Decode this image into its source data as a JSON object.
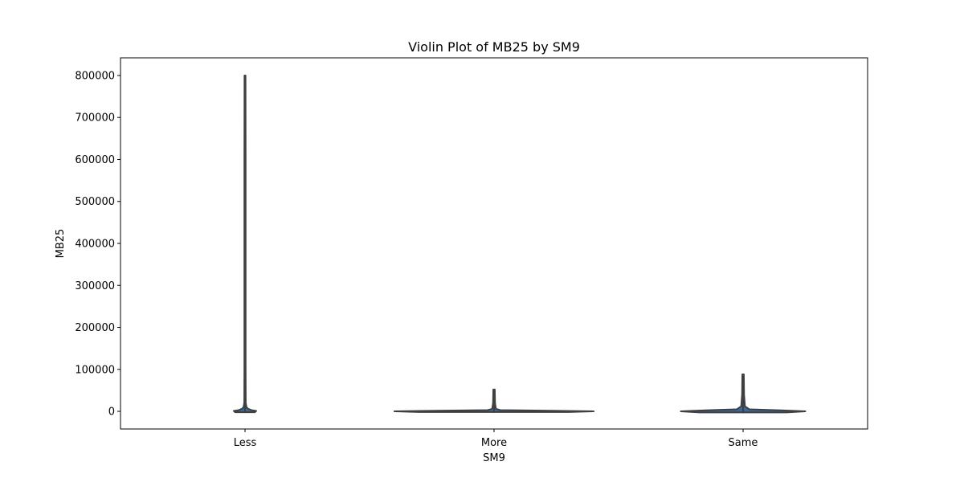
{
  "chart_data": {
    "type": "violin",
    "title": "Violin Plot of MB25 by SM9",
    "xlabel": "SM9",
    "ylabel": "MB25",
    "categories": [
      "Less",
      "More",
      "Same"
    ],
    "yticks": [
      0,
      100000,
      200000,
      300000,
      400000,
      500000,
      600000,
      700000,
      800000
    ],
    "ytick_labels": [
      "0",
      "100000",
      "200000",
      "300000",
      "400000",
      "500000",
      "600000",
      "700000",
      "800000"
    ],
    "ylim": [
      -42000,
      842000
    ],
    "grid": false,
    "legend": "none",
    "colors": {
      "violin_fill": "#3b6a9a",
      "violin_edge": "#3f3f3f",
      "axis": "#000000",
      "background": "#ffffff"
    },
    "violins": [
      {
        "category": "Less",
        "min": -2000,
        "max": 800000,
        "profile": [
          {
            "y": -2000,
            "w": 0.08
          },
          {
            "y": 1000,
            "w": 0.09
          },
          {
            "y": 3000,
            "w": 0.05
          },
          {
            "y": 6000,
            "w": 0.025
          },
          {
            "y": 10000,
            "w": 0.012
          },
          {
            "y": 20000,
            "w": 0.006
          },
          {
            "y": 100000,
            "w": 0.005
          },
          {
            "y": 600000,
            "w": 0.005
          },
          {
            "y": 800000,
            "w": 0.004
          }
        ]
      },
      {
        "category": "More",
        "min": -1500,
        "max": 52000,
        "profile": [
          {
            "y": -1500,
            "w": 0.6
          },
          {
            "y": 0,
            "w": 0.8
          },
          {
            "y": 1500,
            "w": 0.45
          },
          {
            "y": 3000,
            "w": 0.05
          },
          {
            "y": 6000,
            "w": 0.015
          },
          {
            "y": 20000,
            "w": 0.008
          },
          {
            "y": 52000,
            "w": 0.006
          }
        ]
      },
      {
        "category": "Same",
        "min": -2500,
        "max": 88000,
        "profile": [
          {
            "y": -2500,
            "w": 0.35
          },
          {
            "y": 0,
            "w": 0.5
          },
          {
            "y": 2500,
            "w": 0.3
          },
          {
            "y": 5000,
            "w": 0.05
          },
          {
            "y": 12000,
            "w": 0.015
          },
          {
            "y": 40000,
            "w": 0.008
          },
          {
            "y": 88000,
            "w": 0.006
          }
        ]
      }
    ]
  }
}
